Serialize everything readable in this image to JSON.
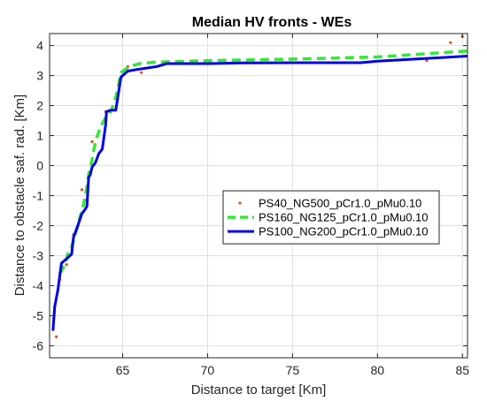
{
  "chart_data": {
    "type": "line",
    "title": "Median HV fronts - WEs",
    "xlabel": "Distance to target [Km]",
    "ylabel": "Distance to obstacle saf. rad. [Km]",
    "xlim": [
      60.7,
      85.3
    ],
    "ylim": [
      -6.4,
      4.4
    ],
    "xticks": [
      65,
      70,
      75,
      80,
      85
    ],
    "yticks": [
      -6,
      -5,
      -4,
      -3,
      -2,
      -1,
      0,
      1,
      2,
      3,
      4
    ],
    "grid": true,
    "legend_position": "center-right",
    "series": [
      {
        "name": "PS40_NG500_pCr1.0_pMu0.10",
        "style": "points",
        "color": "#D95319",
        "points": [
          [
            61.1,
            -5.7
          ],
          [
            61.3,
            -3.8
          ],
          [
            61.7,
            -3.3
          ],
          [
            62.1,
            -2.3
          ],
          [
            62.6,
            -0.8
          ],
          [
            63.2,
            0.8
          ],
          [
            64.0,
            1.8
          ],
          [
            64.7,
            2.2
          ],
          [
            65.3,
            3.3
          ],
          [
            66.1,
            3.1
          ],
          [
            82.9,
            3.5
          ],
          [
            84.3,
            4.1
          ],
          [
            85.0,
            4.3
          ]
        ]
      },
      {
        "name": "PS160_NG125_pCr1.0_pMu0.10",
        "style": "dashed",
        "color": "#33E833",
        "points": [
          [
            61.3,
            -3.6
          ],
          [
            61.6,
            -3.3
          ],
          [
            61.8,
            -2.9
          ],
          [
            62.0,
            -2.7
          ],
          [
            62.2,
            -2.3
          ],
          [
            62.5,
            -1.7
          ],
          [
            62.7,
            -1.3
          ],
          [
            62.9,
            -0.7
          ],
          [
            63.0,
            -0.3
          ],
          [
            63.2,
            0.2
          ],
          [
            63.4,
            0.8
          ],
          [
            63.7,
            1.3
          ],
          [
            64.0,
            1.6
          ],
          [
            64.3,
            1.8
          ],
          [
            64.5,
            2.1
          ],
          [
            64.7,
            2.5
          ],
          [
            64.9,
            3.1
          ],
          [
            65.4,
            3.3
          ],
          [
            66.0,
            3.4
          ],
          [
            67.0,
            3.45
          ],
          [
            70.0,
            3.5
          ],
          [
            75.0,
            3.55
          ],
          [
            80.0,
            3.62
          ],
          [
            85.3,
            3.82
          ]
        ]
      },
      {
        "name": "PS100_NG200_pCr1.0_pMu0.10",
        "style": "solid",
        "color": "#0000E6",
        "points": [
          [
            60.9,
            -5.5
          ],
          [
            61.0,
            -4.7
          ],
          [
            61.2,
            -4.1
          ],
          [
            61.4,
            -3.25
          ],
          [
            61.8,
            -3.05
          ],
          [
            62.0,
            -2.95
          ],
          [
            62.1,
            -2.4
          ],
          [
            62.3,
            -2.1
          ],
          [
            62.6,
            -1.6
          ],
          [
            62.8,
            -1.45
          ],
          [
            62.9,
            -1.35
          ],
          [
            63.0,
            -0.4
          ],
          [
            63.1,
            -0.3
          ],
          [
            63.2,
            -0.05
          ],
          [
            63.4,
            0.1
          ],
          [
            63.6,
            0.4
          ],
          [
            63.8,
            0.55
          ],
          [
            64.0,
            1.35
          ],
          [
            64.05,
            1.8
          ],
          [
            64.3,
            1.85
          ],
          [
            64.6,
            1.85
          ],
          [
            64.9,
            2.95
          ],
          [
            65.3,
            3.15
          ],
          [
            65.8,
            3.2
          ],
          [
            67.0,
            3.3
          ],
          [
            67.6,
            3.4
          ],
          [
            70.0,
            3.4
          ],
          [
            72.0,
            3.42
          ],
          [
            75.0,
            3.43
          ],
          [
            79.0,
            3.43
          ],
          [
            80.0,
            3.48
          ],
          [
            85.3,
            3.65
          ]
        ]
      }
    ]
  }
}
